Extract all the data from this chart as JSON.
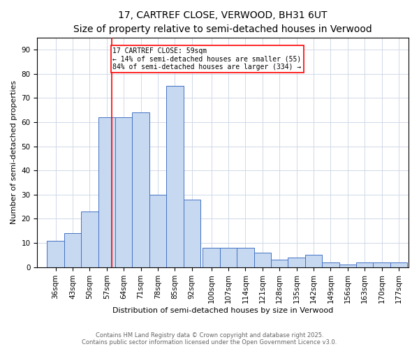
{
  "title_line1": "17, CARTREF CLOSE, VERWOOD, BH31 6UT",
  "title_line2": "Size of property relative to semi-detached houses in Verwood",
  "xlabel": "Distribution of semi-detached houses by size in Verwood",
  "ylabel": "Number of semi-detached properties",
  "footnote1": "Contains HM Land Registry data © Crown copyright and database right 2025.",
  "footnote2": "Contains public sector information licensed under the Open Government Licence v3.0.",
  "annotation_line1": "17 CARTREF CLOSE: 59sqm",
  "annotation_line2": "← 14% of semi-detached houses are smaller (55)",
  "annotation_line3": "84% of semi-detached houses are larger (334) →",
  "bin_labels": [
    "36sqm",
    "43sqm",
    "50sqm",
    "57sqm",
    "64sqm",
    "71sqm",
    "78sqm",
    "85sqm",
    "92sqm",
    "100sqm",
    "107sqm",
    "114sqm",
    "121sqm",
    "128sqm",
    "135sqm",
    "142sqm",
    "149sqm",
    "156sqm",
    "163sqm",
    "170sqm",
    "177sqm"
  ],
  "bin_centers": [
    36,
    43,
    50,
    57,
    64,
    71,
    78,
    85,
    92,
    100,
    107,
    114,
    121,
    128,
    135,
    142,
    149,
    156,
    163,
    170,
    177
  ],
  "bin_width": 7,
  "counts": [
    11,
    14,
    23,
    62,
    62,
    64,
    30,
    75,
    28,
    8,
    8,
    8,
    6,
    3,
    4,
    5,
    2,
    1,
    2,
    2,
    2
  ],
  "bar_color": "#c6d9f1",
  "bar_edge_color": "#4472c4",
  "vline_color": "red",
  "vline_x": 59,
  "ylim": [
    0,
    95
  ],
  "yticks": [
    0,
    10,
    20,
    30,
    40,
    50,
    60,
    70,
    80,
    90
  ],
  "grid_color": "#d0d8e8",
  "title_fontsize": 10,
  "subtitle_fontsize": 8.5,
  "xlabel_fontsize": 8,
  "ylabel_fontsize": 8,
  "tick_fontsize": 7.5,
  "footnote_fontsize": 6,
  "annotation_fontsize": 7
}
